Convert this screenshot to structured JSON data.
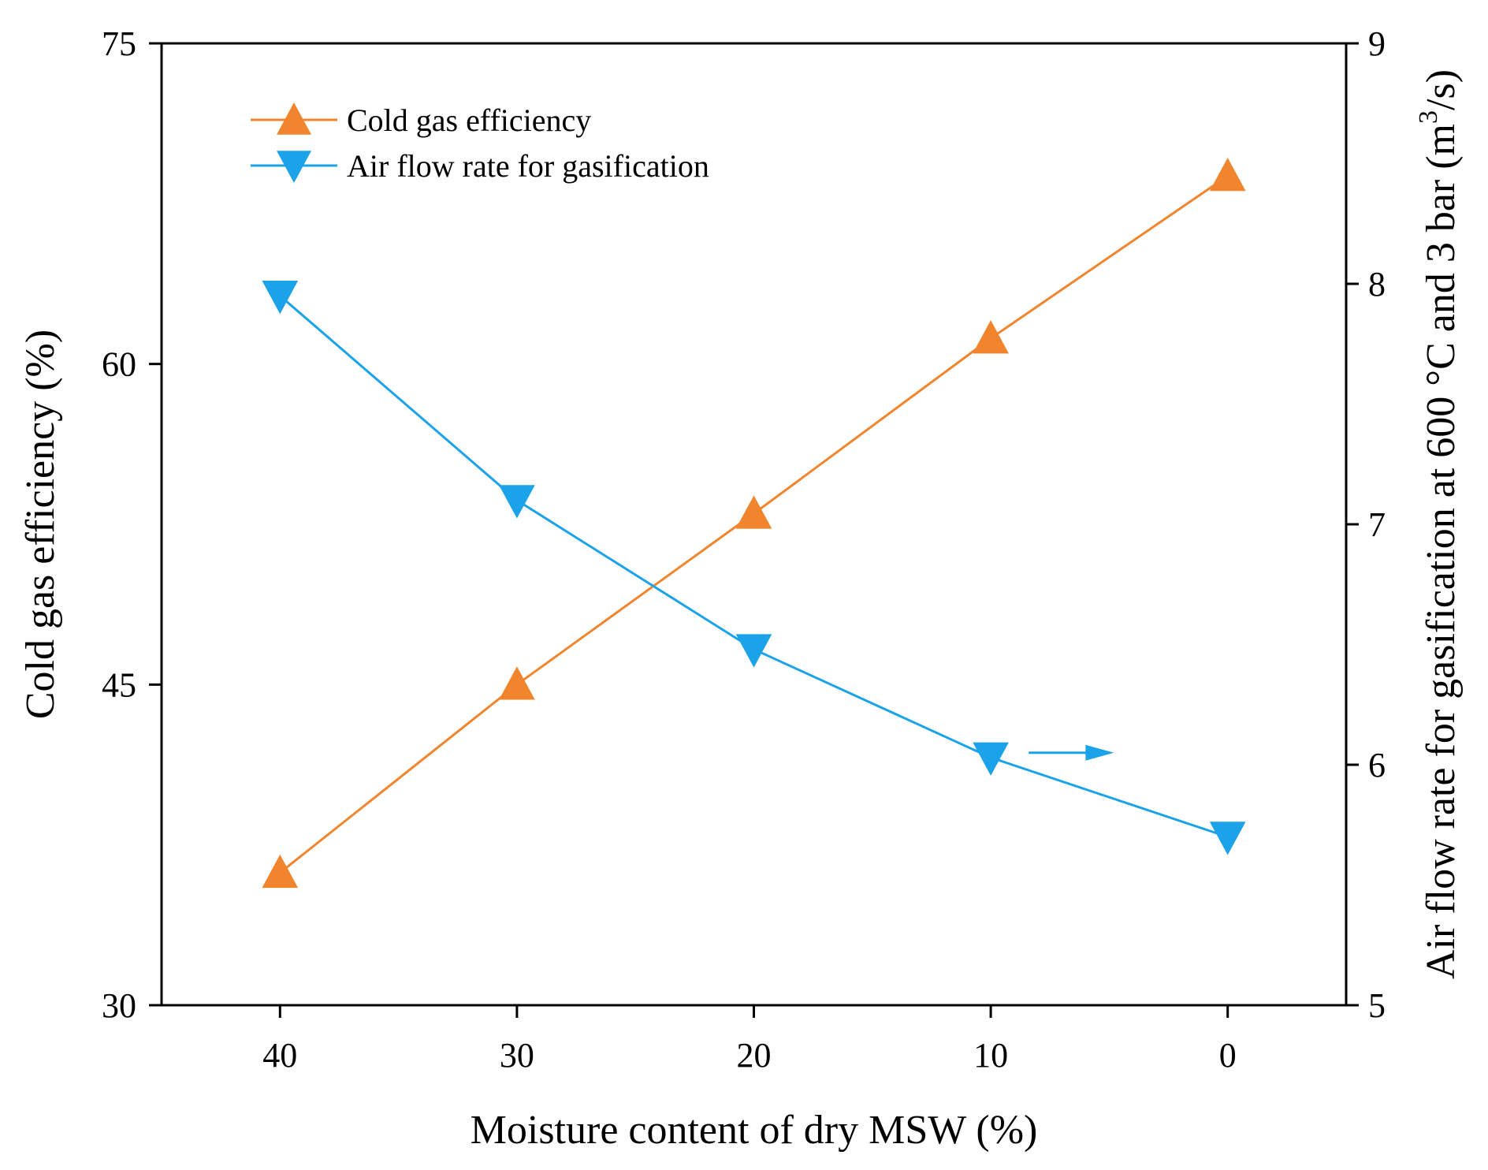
{
  "chart_data": {
    "type": "line",
    "xlabel": "Moisture content of dry MSW (%)",
    "ylabel_left": "Cold gas efficiency (%)",
    "ylabel_right": "Air flow rate for gasification at 600 °C and 3 bar (m³/s)",
    "ylabel_right_parts": {
      "main": "Air flow rate for gasification at 600 °C and 3 bar (m",
      "superscript": "3",
      "tail": "/s)"
    },
    "x_reversed": true,
    "xlim": [
      45,
      -5
    ],
    "x_ticks": [
      40,
      30,
      20,
      10,
      0
    ],
    "x_tick_labels": [
      "40",
      "30",
      "20",
      "10",
      "0"
    ],
    "ylim_left": [
      30,
      75
    ],
    "y_left_ticks": [
      30,
      45,
      60,
      75
    ],
    "y_left_tick_labels": [
      "30",
      "45",
      "60",
      "75"
    ],
    "ylim_right": [
      5,
      9
    ],
    "y_right_ticks": [
      5,
      6,
      7,
      8,
      9
    ],
    "y_right_tick_labels": [
      "5",
      "6",
      "7",
      "8",
      "9"
    ],
    "grid": false,
    "legend_position": "top-left",
    "series": [
      {
        "name": "Cold gas efficiency",
        "axis": "left",
        "marker": "triangle-up",
        "color": "#F0852D",
        "x": [
          40,
          30,
          20,
          10,
          0
        ],
        "y": [
          36.2,
          45.0,
          53.0,
          61.2,
          68.8
        ]
      },
      {
        "name": "Air flow rate for gasification",
        "axis": "right",
        "marker": "triangle-down",
        "color": "#1AA3E8",
        "x": [
          40,
          30,
          20,
          10,
          0
        ],
        "y": [
          7.95,
          7.1,
          6.48,
          6.03,
          5.7
        ]
      }
    ],
    "annotations": [
      {
        "type": "arrow",
        "direction": "right",
        "color": "#1AA3E8",
        "x_from": 8.4,
        "x_to": 4.8,
        "y_right": 6.05,
        "meaning": "series belongs to right axis"
      }
    ]
  }
}
